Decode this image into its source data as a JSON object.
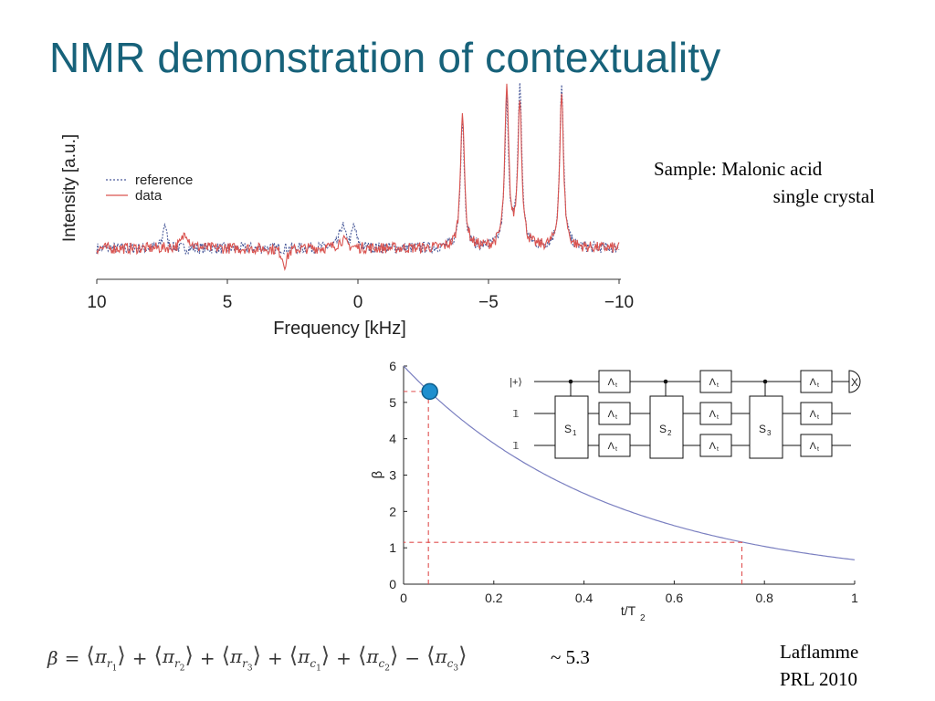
{
  "slide": {
    "title": "NMR demonstration of contextuality",
    "sample_line1": "Sample: Malonic acid",
    "sample_line2": "single crystal",
    "citation_line1": "Laflamme",
    "citation_line2": "PRL 2010",
    "approx_value": "~ 5.3"
  },
  "formula": {
    "lhs": "β",
    "terms": [
      {
        "sign": "=",
        "sub": "r",
        "idx": "1"
      },
      {
        "sign": "+",
        "sub": "r",
        "idx": "2"
      },
      {
        "sign": "+",
        "sub": "r",
        "idx": "3"
      },
      {
        "sign": "+",
        "sub": "c",
        "idx": "1"
      },
      {
        "sign": "+",
        "sub": "c",
        "idx": "2"
      },
      {
        "sign": "−",
        "sub": "c",
        "idx": "3"
      }
    ]
  },
  "chart_data": [
    {
      "type": "line",
      "xlabel": "Frequency [kHz]",
      "ylabel": "Intensity [a.u.]",
      "xlim": [
        10,
        -10
      ],
      "xticks": [
        "10",
        "5",
        "0",
        "−5",
        "−10"
      ],
      "legend": {
        "placement": "top-left"
      },
      "series": [
        {
          "name": "reference",
          "style": "dotted",
          "color": "#4a5a9a"
        },
        {
          "name": "data",
          "style": "solid",
          "color": "#d9534f"
        }
      ],
      "peaks_khz": [
        -4.0,
        -5.7,
        -6.2,
        -7.8
      ],
      "peak_heights": {
        "reference": [
          0.82,
          0.9,
          1.0,
          1.0
        ],
        "data": [
          0.86,
          0.98,
          0.92,
          0.96
        ]
      }
    },
    {
      "type": "line",
      "xlabel": "t/T",
      "xlabel_sub": "2",
      "ylabel": "β",
      "xlim": [
        0,
        1
      ],
      "ylim": [
        0,
        6
      ],
      "xticks": [
        "0",
        "0.2",
        "0.4",
        "0.6",
        "0.8",
        "1"
      ],
      "yticks": [
        "0",
        "1",
        "2",
        "3",
        "4",
        "5",
        "6"
      ],
      "curve_color": "#7a7fc0",
      "marker": {
        "x": 0.055,
        "y": 5.3,
        "color": "#1f8fce"
      },
      "dashed_guides": [
        {
          "x": 0.055,
          "y": 5.3
        },
        {
          "x": 0.75,
          "y": 1.15
        }
      ],
      "guide_color": "#e05050"
    }
  ],
  "circuit": {
    "input_labels": [
      "|+⟩",
      "𝟙",
      "𝟙"
    ],
    "lambda_label": "Λ",
    "lambda_sub": "t",
    "s_blocks": [
      {
        "label": "S",
        "idx": "1"
      },
      {
        "label": "S",
        "idx": "2"
      },
      {
        "label": "S",
        "idx": "3"
      }
    ],
    "measure_label": "X"
  }
}
